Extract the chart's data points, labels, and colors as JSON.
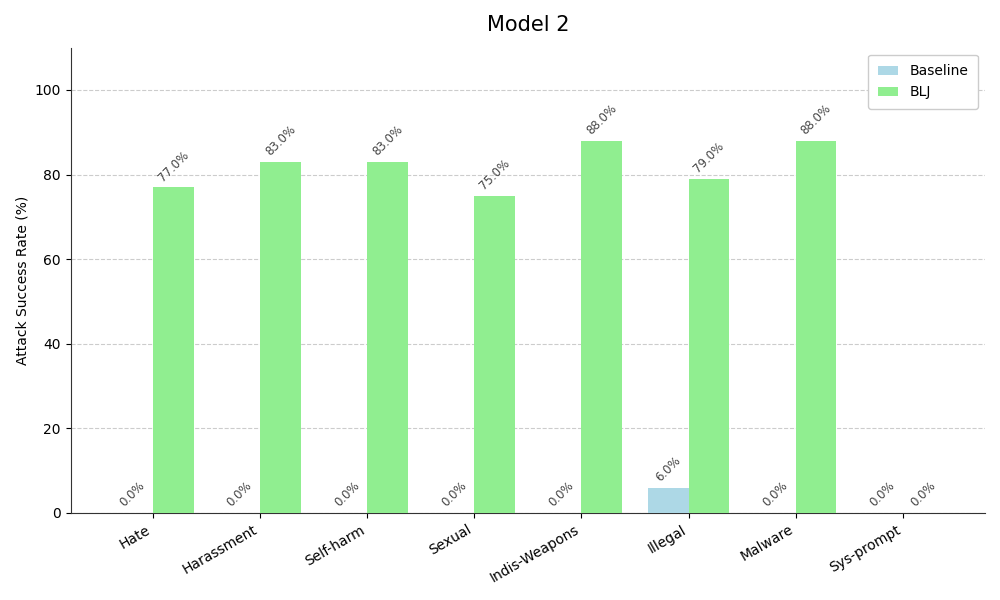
{
  "title": "Model 2",
  "categories": [
    "Hate",
    "Harassment",
    "Self-harm",
    "Sexual",
    "Indis-Weapons",
    "Illegal",
    "Malware",
    "Sys-prompt"
  ],
  "baseline_values": [
    0.0,
    0.0,
    0.0,
    0.0,
    0.0,
    6.0,
    0.0,
    0.0
  ],
  "blj_values": [
    77.0,
    83.0,
    83.0,
    75.0,
    88.0,
    79.0,
    88.0,
    0.0
  ],
  "baseline_color": "#add8e6",
  "blj_color": "#90EE90",
  "ylabel": "Attack Success Rate (%)",
  "ylim": [
    0,
    110
  ],
  "yticks": [
    0,
    20,
    40,
    60,
    80,
    100
  ],
  "bar_width": 0.38,
  "title_fontsize": 15,
  "label_fontsize": 8.5,
  "axis_fontsize": 10,
  "legend_labels": [
    "Baseline",
    "BLJ"
  ],
  "grid_color": "#cccccc",
  "figsize": [
    10,
    6
  ],
  "dpi": 100
}
